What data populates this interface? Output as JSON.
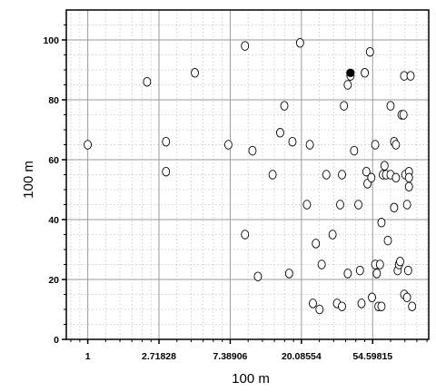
{
  "chart_data": {
    "type": "scatter",
    "xlabel": "100 m",
    "ylabel": "100 m",
    "x_scale": "log",
    "xlim": [
      0.74,
      120
    ],
    "ylim": [
      0,
      110
    ],
    "x_ticks": [
      1,
      2.71828,
      7.38906,
      20.08554,
      54.59815
    ],
    "x_tick_labels": [
      "1",
      "2.71828",
      "7.38906",
      "20.08554",
      "54.59815"
    ],
    "y_ticks": [
      0,
      20,
      40,
      60,
      80,
      100
    ],
    "y_tick_labels": [
      "0",
      "20",
      "40",
      "60",
      "80",
      "100"
    ],
    "grid": true,
    "minor_grid": true,
    "colors": {
      "marker_fill": "#ffffff",
      "marker_edge": "#000000",
      "highlight_fill": "#000000",
      "grid_major": "#9a9a9a",
      "grid_minor": "#c4c4c4"
    },
    "series": [
      {
        "marker": "open-circle",
        "points": [
          [
            1.0,
            65
          ],
          [
            2.3,
            86
          ],
          [
            3.0,
            66
          ],
          [
            3.0,
            56
          ],
          [
            4.5,
            89
          ],
          [
            7.2,
            65
          ],
          [
            9.1,
            98
          ],
          [
            9.1,
            35
          ],
          [
            10.1,
            63
          ],
          [
            10.9,
            21
          ],
          [
            13.4,
            55
          ],
          [
            14.9,
            69
          ],
          [
            15.8,
            78
          ],
          [
            16.9,
            22
          ],
          [
            17.7,
            66
          ],
          [
            19.7,
            99
          ],
          [
            21.7,
            45
          ],
          [
            22.6,
            65
          ],
          [
            23.6,
            12
          ],
          [
            24.6,
            32
          ],
          [
            25.9,
            10
          ],
          [
            26.7,
            25
          ],
          [
            28.5,
            55
          ],
          [
            31.1,
            35
          ],
          [
            33.1,
            12
          ],
          [
            34.6,
            45
          ],
          [
            35.5,
            11
          ],
          [
            35.5,
            55
          ],
          [
            36.5,
            78
          ],
          [
            38.5,
            22
          ],
          [
            38.5,
            85
          ],
          [
            40.0,
            88
          ],
          [
            42.1,
            63
          ],
          [
            44.7,
            45
          ],
          [
            45.7,
            23
          ],
          [
            46.7,
            12
          ],
          [
            48.9,
            89
          ],
          [
            50.0,
            56
          ],
          [
            50.8,
            52
          ],
          [
            52.6,
            96
          ],
          [
            53.6,
            54
          ],
          [
            54.1,
            14
          ],
          [
            56.6,
            65
          ],
          [
            56.6,
            25
          ],
          [
            57.9,
            22
          ],
          [
            59.2,
            11
          ],
          [
            60.5,
            25
          ],
          [
            61.8,
            11
          ],
          [
            61.8,
            39
          ],
          [
            63.0,
            55
          ],
          [
            64.5,
            58
          ],
          [
            65.9,
            55
          ],
          [
            67.6,
            33
          ],
          [
            70.2,
            78
          ],
          [
            70.2,
            55
          ],
          [
            73.8,
            66
          ],
          [
            73.8,
            44
          ],
          [
            75.7,
            54
          ],
          [
            75.7,
            65
          ],
          [
            77.6,
            23
          ],
          [
            79.0,
            25
          ],
          [
            80.3,
            26
          ],
          [
            82.0,
            75
          ],
          [
            84.2,
            75
          ],
          [
            85.0,
            15
          ],
          [
            85.0,
            88
          ],
          [
            86.3,
            55
          ],
          [
            88.5,
            14
          ],
          [
            88.5,
            45
          ],
          [
            89.9,
            23
          ],
          [
            90.9,
            56
          ],
          [
            90.9,
            54
          ],
          [
            90.9,
            51
          ],
          [
            93.0,
            88
          ],
          [
            95.0,
            11
          ]
        ]
      },
      {
        "marker": "filled-circle",
        "points": [
          [
            40.0,
            89
          ]
        ]
      }
    ]
  }
}
